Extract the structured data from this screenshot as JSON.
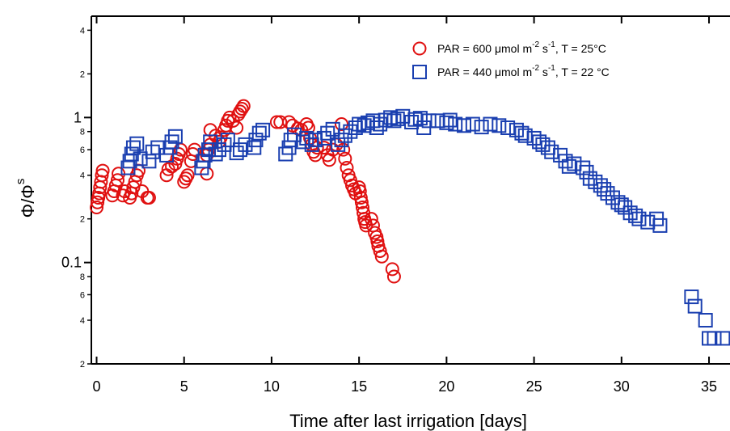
{
  "chart_data": {
    "type": "scatter",
    "xlabel": "Time after last irrigation [days]",
    "ylabel": {
      "main": "Φ/Φ",
      "sup": "s"
    },
    "xlim": [
      -0.3,
      36.2
    ],
    "ylim": [
      0.02,
      5
    ],
    "yscale": "log",
    "x_ticks": [
      0,
      5,
      10,
      15,
      20,
      25,
      30,
      35
    ],
    "y_major_ticks": [
      {
        "value": 1,
        "label": "1"
      },
      {
        "value": 0.1,
        "label": "0.1"
      }
    ],
    "y_minor_ticks": [
      {
        "value": 4,
        "label": "4"
      },
      {
        "value": 2,
        "label": "2"
      },
      {
        "value": 0.8,
        "label": "8"
      },
      {
        "value": 0.6,
        "label": "6"
      },
      {
        "value": 0.4,
        "label": "4"
      },
      {
        "value": 0.2,
        "label": "2"
      },
      {
        "value": 0.08,
        "label": "8"
      },
      {
        "value": 0.06,
        "label": "6"
      },
      {
        "value": 0.04,
        "label": "4"
      },
      {
        "value": 0.02,
        "label": "2"
      }
    ],
    "top_ticks": [
      0,
      5,
      10,
      15,
      20,
      25,
      30,
      35
    ],
    "legend_placement": "top-right",
    "series": [
      {
        "name": "PAR = 600 μmol m-2 s-1, T = 25°C",
        "legend": {
          "pre": "PAR = 600 μmol m",
          "sup1": "-2",
          "mid": " s",
          "sup2": "-1",
          "post": ", T = 25°C"
        },
        "marker": "circle",
        "color": "#e01010",
        "points": [
          [
            0.0,
            0.24
          ],
          [
            0.05,
            0.26
          ],
          [
            0.1,
            0.28
          ],
          [
            0.15,
            0.3
          ],
          [
            0.2,
            0.33
          ],
          [
            0.25,
            0.36
          ],
          [
            0.3,
            0.4
          ],
          [
            0.35,
            0.43
          ],
          [
            0.9,
            0.29
          ],
          [
            1.0,
            0.31
          ],
          [
            1.1,
            0.34
          ],
          [
            1.2,
            0.37
          ],
          [
            1.25,
            0.41
          ],
          [
            1.5,
            0.29
          ],
          [
            1.6,
            0.31
          ],
          [
            1.9,
            0.28
          ],
          [
            2.0,
            0.3
          ],
          [
            2.1,
            0.33
          ],
          [
            2.2,
            0.36
          ],
          [
            2.3,
            0.4
          ],
          [
            2.4,
            0.43
          ],
          [
            2.6,
            0.31
          ],
          [
            2.9,
            0.28
          ],
          [
            3.0,
            0.28
          ],
          [
            4.0,
            0.4
          ],
          [
            4.1,
            0.44
          ],
          [
            4.3,
            0.46
          ],
          [
            4.5,
            0.48
          ],
          [
            4.6,
            0.52
          ],
          [
            4.7,
            0.56
          ],
          [
            4.8,
            0.6
          ],
          [
            5.0,
            0.36
          ],
          [
            5.1,
            0.38
          ],
          [
            5.2,
            0.4
          ],
          [
            5.4,
            0.5
          ],
          [
            5.5,
            0.56
          ],
          [
            5.6,
            0.6
          ],
          [
            6.3,
            0.41
          ],
          [
            6.3,
            0.55
          ],
          [
            6.4,
            0.6
          ],
          [
            6.5,
            0.65
          ],
          [
            6.5,
            0.82
          ],
          [
            6.8,
            0.75
          ],
          [
            7.0,
            0.68
          ],
          [
            7.1,
            0.73
          ],
          [
            7.3,
            0.82
          ],
          [
            7.4,
            0.88
          ],
          [
            7.5,
            0.95
          ],
          [
            7.6,
            1.0
          ],
          [
            7.8,
            0.95
          ],
          [
            8.0,
            0.85
          ],
          [
            8.1,
            1.05
          ],
          [
            8.2,
            1.1
          ],
          [
            8.3,
            1.15
          ],
          [
            8.4,
            1.2
          ],
          [
            10.3,
            0.93
          ],
          [
            10.5,
            0.93
          ],
          [
            11.0,
            0.93
          ],
          [
            11.2,
            0.88
          ],
          [
            11.5,
            0.84
          ],
          [
            11.7,
            0.82
          ],
          [
            12.0,
            0.9
          ],
          [
            12.1,
            0.85
          ],
          [
            12.2,
            0.72
          ],
          [
            12.3,
            0.65
          ],
          [
            12.4,
            0.58
          ],
          [
            12.5,
            0.55
          ],
          [
            12.6,
            0.62
          ],
          [
            13.0,
            0.62
          ],
          [
            13.2,
            0.55
          ],
          [
            13.3,
            0.51
          ],
          [
            13.5,
            0.6
          ],
          [
            13.7,
            0.65
          ],
          [
            14.0,
            0.9
          ],
          [
            14.1,
            0.6
          ],
          [
            14.2,
            0.52
          ],
          [
            14.3,
            0.45
          ],
          [
            14.4,
            0.4
          ],
          [
            14.5,
            0.37
          ],
          [
            14.6,
            0.34
          ],
          [
            14.7,
            0.32
          ],
          [
            14.8,
            0.3
          ],
          [
            15.0,
            0.33
          ],
          [
            15.05,
            0.31
          ],
          [
            15.1,
            0.28
          ],
          [
            15.15,
            0.26
          ],
          [
            15.2,
            0.24
          ],
          [
            15.25,
            0.22
          ],
          [
            15.3,
            0.2
          ],
          [
            15.35,
            0.19
          ],
          [
            15.4,
            0.18
          ],
          [
            15.7,
            0.2
          ],
          [
            15.8,
            0.18
          ],
          [
            15.9,
            0.16
          ],
          [
            16.0,
            0.15
          ],
          [
            16.05,
            0.14
          ],
          [
            16.1,
            0.13
          ],
          [
            16.2,
            0.12
          ],
          [
            16.3,
            0.11
          ],
          [
            16.9,
            0.09
          ],
          [
            17.0,
            0.08
          ]
        ]
      },
      {
        "name": "PAR = 440 μmol m-2 s-1, T = 22 °C",
        "legend": {
          "pre": "PAR = 440 μmol m",
          "sup1": "-2",
          "mid": " s",
          "sup2": "-1",
          "post": ", T = 22 °C"
        },
        "marker": "square",
        "color": "#1a3fb0",
        "points": [
          [
            1.8,
            0.45
          ],
          [
            1.9,
            0.5
          ],
          [
            2.0,
            0.56
          ],
          [
            2.1,
            0.62
          ],
          [
            2.3,
            0.66
          ],
          [
            2.5,
            0.52
          ],
          [
            3.0,
            0.5
          ],
          [
            3.2,
            0.58
          ],
          [
            3.5,
            0.62
          ],
          [
            4.0,
            0.55
          ],
          [
            4.2,
            0.62
          ],
          [
            4.3,
            0.68
          ],
          [
            4.5,
            0.74
          ],
          [
            6.0,
            0.45
          ],
          [
            6.1,
            0.5
          ],
          [
            6.2,
            0.55
          ],
          [
            6.4,
            0.6
          ],
          [
            6.5,
            0.68
          ],
          [
            6.8,
            0.56
          ],
          [
            7.0,
            0.6
          ],
          [
            7.3,
            0.65
          ],
          [
            7.5,
            0.7
          ],
          [
            8.0,
            0.57
          ],
          [
            8.2,
            0.6
          ],
          [
            8.5,
            0.65
          ],
          [
            9.0,
            0.62
          ],
          [
            9.1,
            0.7
          ],
          [
            9.3,
            0.78
          ],
          [
            9.5,
            0.82
          ],
          [
            10.8,
            0.56
          ],
          [
            11.0,
            0.62
          ],
          [
            11.1,
            0.7
          ],
          [
            11.3,
            0.76
          ],
          [
            11.8,
            0.68
          ],
          [
            12.0,
            0.72
          ],
          [
            12.3,
            0.65
          ],
          [
            12.5,
            0.7
          ],
          [
            13.0,
            0.72
          ],
          [
            13.2,
            0.78
          ],
          [
            13.5,
            0.83
          ],
          [
            13.8,
            0.65
          ],
          [
            14.0,
            0.7
          ],
          [
            14.2,
            0.75
          ],
          [
            14.5,
            0.8
          ],
          [
            14.8,
            0.85
          ],
          [
            15.0,
            0.9
          ],
          [
            15.3,
            0.88
          ],
          [
            15.5,
            0.92
          ],
          [
            15.8,
            0.95
          ],
          [
            16.0,
            0.85
          ],
          [
            16.2,
            0.9
          ],
          [
            16.5,
            0.96
          ],
          [
            16.8,
            1.0
          ],
          [
            17.0,
            0.95
          ],
          [
            17.2,
            0.98
          ],
          [
            17.5,
            1.02
          ],
          [
            18.0,
            0.93
          ],
          [
            18.2,
            0.97
          ],
          [
            18.5,
            0.99
          ],
          [
            18.7,
            0.85
          ],
          [
            19.0,
            0.95
          ],
          [
            19.5,
            0.95
          ],
          [
            20.0,
            0.92
          ],
          [
            20.2,
            0.96
          ],
          [
            20.5,
            0.9
          ],
          [
            21.0,
            0.88
          ],
          [
            21.5,
            0.9
          ],
          [
            22.0,
            0.86
          ],
          [
            22.5,
            0.9
          ],
          [
            23.0,
            0.88
          ],
          [
            23.5,
            0.85
          ],
          [
            24.0,
            0.82
          ],
          [
            24.3,
            0.78
          ],
          [
            24.5,
            0.75
          ],
          [
            25.0,
            0.72
          ],
          [
            25.3,
            0.68
          ],
          [
            25.5,
            0.65
          ],
          [
            25.8,
            0.62
          ],
          [
            26.0,
            0.58
          ],
          [
            26.5,
            0.55
          ],
          [
            26.8,
            0.5
          ],
          [
            27.0,
            0.46
          ],
          [
            27.3,
            0.48
          ],
          [
            27.8,
            0.45
          ],
          [
            28.0,
            0.42
          ],
          [
            28.2,
            0.38
          ],
          [
            28.5,
            0.36
          ],
          [
            28.8,
            0.34
          ],
          [
            29.0,
            0.32
          ],
          [
            29.2,
            0.3
          ],
          [
            29.5,
            0.28
          ],
          [
            29.8,
            0.26
          ],
          [
            30.0,
            0.25
          ],
          [
            30.2,
            0.24
          ],
          [
            30.5,
            0.22
          ],
          [
            30.8,
            0.21
          ],
          [
            31.0,
            0.2
          ],
          [
            31.5,
            0.19
          ],
          [
            32.0,
            0.2
          ],
          [
            32.2,
            0.18
          ],
          [
            34.0,
            0.058
          ],
          [
            34.2,
            0.05
          ],
          [
            34.8,
            0.04
          ],
          [
            35.0,
            0.03
          ],
          [
            35.3,
            0.03
          ],
          [
            35.8,
            0.03
          ]
        ]
      }
    ]
  }
}
